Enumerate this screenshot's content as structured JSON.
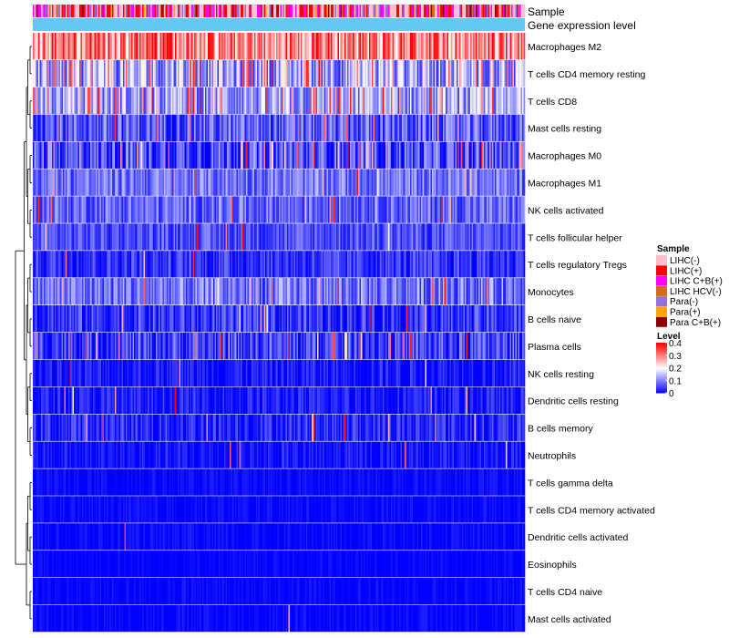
{
  "chart_data": {
    "type": "heatmap",
    "annotation_tracks": [
      {
        "name": "Sample",
        "key": "sample"
      },
      {
        "name": "Gene expression level",
        "key": "gene",
        "color": "#63C8F2"
      }
    ],
    "rows": [
      {
        "label": "Macrophages M2",
        "mean": 0.3,
        "spread": 0.12,
        "hot_prob": 0.6
      },
      {
        "label": "T cells CD4 memory resting",
        "mean": 0.13,
        "spread": 0.1,
        "hot_prob": 0.15
      },
      {
        "label": "T cells CD8",
        "mean": 0.12,
        "spread": 0.08,
        "hot_prob": 0.12
      },
      {
        "label": "Mast cells resting",
        "mean": 0.07,
        "spread": 0.07,
        "hot_prob": 0.05
      },
      {
        "label": "Macrophages M0",
        "mean": 0.06,
        "spread": 0.08,
        "hot_prob": 0.08
      },
      {
        "label": "Macrophages M1",
        "mean": 0.09,
        "spread": 0.06,
        "hot_prob": 0.02
      },
      {
        "label": "NK cells activated",
        "mean": 0.08,
        "spread": 0.06,
        "hot_prob": 0.02
      },
      {
        "label": "T cells follicular helper",
        "mean": 0.06,
        "spread": 0.05,
        "hot_prob": 0.01
      },
      {
        "label": "T cells regulatory  Tregs",
        "mean": 0.04,
        "spread": 0.05,
        "hot_prob": 0.01
      },
      {
        "label": "Monocytes",
        "mean": 0.09,
        "spread": 0.07,
        "hot_prob": 0.04
      },
      {
        "label": "B cells naive",
        "mean": 0.04,
        "spread": 0.06,
        "hot_prob": 0.02
      },
      {
        "label": "Plasma cells",
        "mean": 0.05,
        "spread": 0.07,
        "hot_prob": 0.03
      },
      {
        "label": "NK cells resting",
        "mean": 0.02,
        "spread": 0.04,
        "hot_prob": 0.01
      },
      {
        "label": "Dendritic cells resting",
        "mean": 0.02,
        "spread": 0.04,
        "hot_prob": 0.01
      },
      {
        "label": "B cells memory",
        "mean": 0.03,
        "spread": 0.05,
        "hot_prob": 0.02
      },
      {
        "label": "Neutrophils",
        "mean": 0.01,
        "spread": 0.04,
        "hot_prob": 0.005
      },
      {
        "label": "T cells gamma delta",
        "mean": 0.005,
        "spread": 0.02,
        "hot_prob": 0.003
      },
      {
        "label": "T cells CD4 memory activated",
        "mean": 0.005,
        "spread": 0.02,
        "hot_prob": 0.002
      },
      {
        "label": "Dendritic cells activated",
        "mean": 0.004,
        "spread": 0.02,
        "hot_prob": 0.002
      },
      {
        "label": "Eosinophils",
        "mean": 0.003,
        "spread": 0.015,
        "hot_prob": 0.001
      },
      {
        "label": "T cells CD4 naive",
        "mean": 0.003,
        "spread": 0.02,
        "hot_prob": 0.001
      },
      {
        "label": "Mast cells activated",
        "mean": 0.004,
        "spread": 0.02,
        "hot_prob": 0.001
      }
    ],
    "n_columns": 360,
    "legend_sample": {
      "title": "Sample",
      "entries": [
        {
          "label": "LIHC(-)",
          "color": "#FFC0CB"
        },
        {
          "label": "LIHC(+)",
          "color": "#FF0000"
        },
        {
          "label": "LIHC C+B(+)",
          "color": "#FF00FF"
        },
        {
          "label": "LIHC HCV(-)",
          "color": "#D2691E"
        },
        {
          "label": "Para(-)",
          "color": "#9370DB"
        },
        {
          "label": "Para(+)",
          "color": "#FFA500"
        },
        {
          "label": "Para C+B(+)",
          "color": "#8B0000"
        }
      ]
    },
    "legend_level": {
      "title": "Level",
      "ticks": [
        "0.4",
        "0.3",
        "0.2",
        "0.1",
        "0"
      ],
      "tick_values": [
        0.4,
        0.3,
        0.2,
        0.1,
        0
      ],
      "range": [
        0,
        0.4
      ]
    },
    "color_scale": {
      "low": "#0000FF",
      "mid": "#FFFFFF",
      "high": "#FF0000",
      "mid_value": 0.2
    }
  }
}
